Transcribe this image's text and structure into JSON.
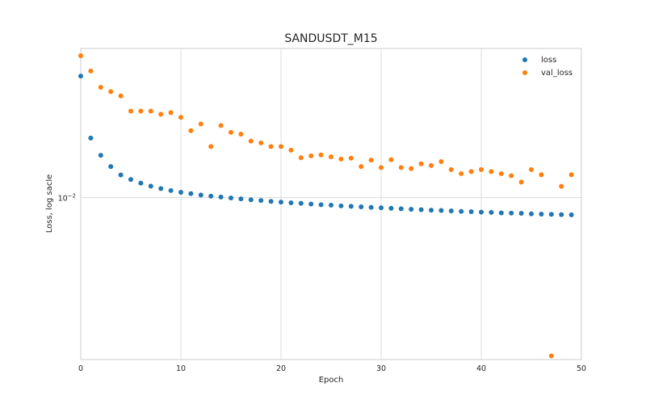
{
  "chart_data": {
    "type": "scatter",
    "title": "SANDUSDT_M15",
    "xlabel": "Epoch",
    "ylabel": "Loss, log sacle",
    "xlim": [
      0,
      50
    ],
    "ylim": [
      0.00492,
      0.0192
    ],
    "yscale": "log",
    "grid": true,
    "legend_position": "top-right",
    "x_ticks": [
      "0",
      "10",
      "20",
      "30",
      "40",
      "50"
    ],
    "y_tick_label": "10",
    "y_tick_exponent": "−2",
    "series": [
      {
        "name": "loss",
        "color": "#1f77b4",
        "values": [
          0.01702,
          0.01297,
          0.01203,
          0.01145,
          0.01104,
          0.01082,
          0.01065,
          0.01051,
          0.0104,
          0.01031,
          0.01023,
          0.01017,
          0.01011,
          0.01006,
          0.01002,
          0.00998,
          0.00994,
          0.0099,
          0.00987,
          0.00983,
          0.0098,
          0.00977,
          0.00975,
          0.00972,
          0.00969,
          0.00967,
          0.00964,
          0.00962,
          0.0096,
          0.00958,
          0.00956,
          0.00954,
          0.00952,
          0.0095,
          0.00948,
          0.00946,
          0.00945,
          0.00943,
          0.00941,
          0.0094,
          0.00938,
          0.00937,
          0.00935,
          0.00934,
          0.00933,
          0.00931,
          0.0093,
          0.00929,
          0.00928,
          0.00927
        ]
      },
      {
        "name": "val_loss",
        "color": "#ff7f0e",
        "values": [
          0.0186,
          0.0174,
          0.0162,
          0.0159,
          0.0156,
          0.0146,
          0.0146,
          0.0146,
          0.0144,
          0.0145,
          0.0142,
          0.0134,
          0.0138,
          0.0125,
          0.0137,
          0.0133,
          0.0132,
          0.0128,
          0.0127,
          0.0125,
          0.0125,
          0.0123,
          0.0119,
          0.012,
          0.01205,
          0.01195,
          0.01183,
          0.01188,
          0.01145,
          0.01178,
          0.0114,
          0.0118,
          0.0114,
          0.01135,
          0.01159,
          0.0115,
          0.0117,
          0.0113,
          0.0111,
          0.0112,
          0.0113,
          0.0112,
          0.0111,
          0.011,
          0.0107,
          0.0113,
          0.01105,
          0.005,
          0.0105,
          0.01105
        ]
      }
    ]
  }
}
